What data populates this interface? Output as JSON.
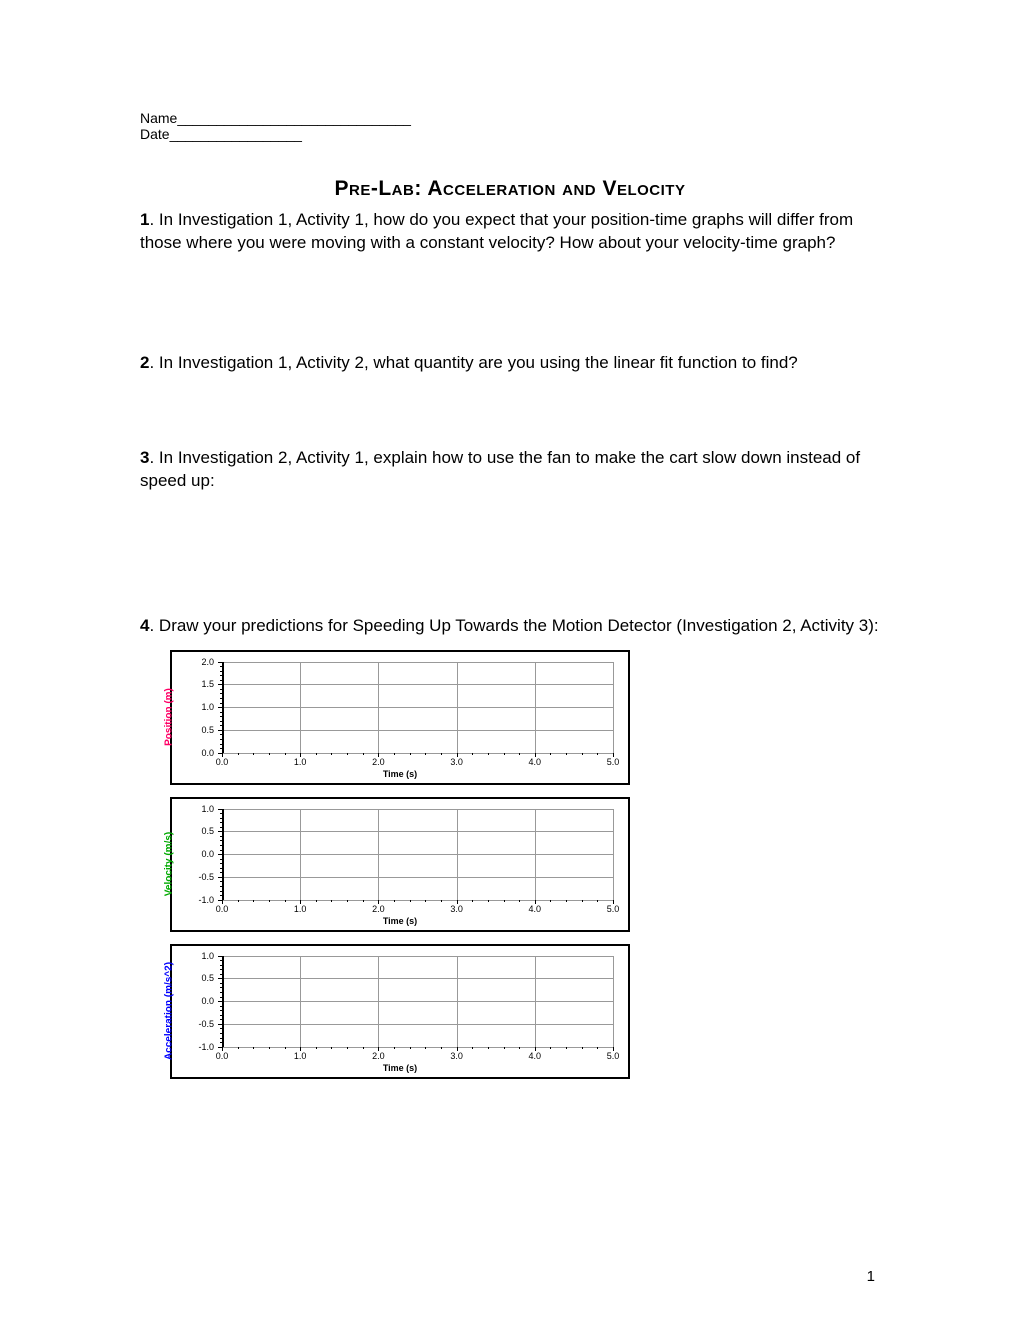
{
  "header": {
    "name_label": "Name______________________________",
    "date_label": "Date_________________"
  },
  "title": "Pre-Lab:  Acceleration and Velocity",
  "questions": {
    "q1_num": "1",
    "q1_text": ".   In Investigation 1, Activity 1, how do you expect that your position-time graphs will differ from those where you were moving with a constant velocity?  How about your velocity-time graph?",
    "q2_num": "2",
    "q2_text": ".   In Investigation 1, Activity 2, what quantity are you using the linear fit function to find?",
    "q3_num": "3",
    "q3_text": ".   In Investigation 2, Activity 1, explain how to use the fan to make the cart slow down instead of speed up:",
    "q4_num": "4",
    "q4_text": ".   Draw your predictions for Speeding Up Towards the Motion Detector (Investigation 2, Activity 3):"
  },
  "graphs": {
    "x_axis_title": "Time (s)",
    "x_ticks": [
      "0.0",
      "1.0",
      "2.0",
      "3.0",
      "4.0",
      "5.0"
    ],
    "x_tick_positions": [
      0,
      20,
      40,
      60,
      80,
      100
    ],
    "position": {
      "ylabel": "Position (m)",
      "ylabel_color": "#ff0066",
      "y_ticks": [
        "0.0",
        "0.5",
        "1.0",
        "1.5",
        "2.0"
      ],
      "y_tick_positions": [
        100,
        75,
        50,
        25,
        0
      ],
      "grid_h": [
        0,
        25,
        50,
        75,
        100
      ],
      "grid_v": [
        0,
        20,
        40,
        60,
        80,
        100
      ]
    },
    "velocity": {
      "ylabel": "Velocity (m/s)",
      "ylabel_color": "#00aa00",
      "y_ticks": [
        "-1.0",
        "-0.5",
        "0.0",
        "0.5",
        "1.0"
      ],
      "y_tick_positions": [
        100,
        75,
        50,
        25,
        0
      ],
      "grid_h": [
        0,
        25,
        50,
        75,
        100
      ],
      "grid_v": [
        0,
        20,
        40,
        60,
        80,
        100
      ]
    },
    "acceleration": {
      "ylabel": "Acceleration (m/s^2)",
      "ylabel_color": "#0000ff",
      "y_ticks": [
        "-1.0",
        "-0.5",
        "0.0",
        "0.5",
        "1.0"
      ],
      "y_tick_positions": [
        100,
        75,
        50,
        25,
        0
      ],
      "grid_h": [
        0,
        25,
        50,
        75,
        100
      ],
      "grid_v": [
        0,
        20,
        40,
        60,
        80,
        100
      ]
    }
  },
  "page_number": "1"
}
